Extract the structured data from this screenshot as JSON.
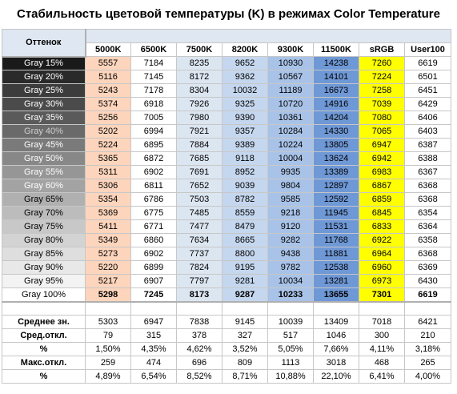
{
  "title": "Стабильность цветовой температуры (K) в режимах Color Temperature",
  "header": {
    "row_label": "Оттенок",
    "columns": [
      "5000K",
      "6500K",
      "7500K",
      "8200K",
      "9300K",
      "11500K",
      "sRGB",
      "User100"
    ]
  },
  "column_colors": [
    "#fdd5bc",
    "#ffffff",
    "#dce6f1",
    "#c5d7ee",
    "#a9c3e8",
    "#6f98d6",
    "#ffff00",
    "#ffffff"
  ],
  "rows": [
    {
      "label": "Gray 15%",
      "shade": "#1a1a1a",
      "text_color": "#ffffff",
      "values": [
        "5557",
        "7184",
        "8235",
        "9652",
        "10930",
        "14238",
        "7260",
        "6619"
      ]
    },
    {
      "label": "Gray 20%",
      "shade": "#2a2a2a",
      "text_color": "#ffffff",
      "values": [
        "5116",
        "7145",
        "8172",
        "9362",
        "10567",
        "14101",
        "7224",
        "6501"
      ]
    },
    {
      "label": "Gray 25%",
      "shade": "#3c3c3c",
      "text_color": "#ffffff",
      "values": [
        "5243",
        "7178",
        "8304",
        "10032",
        "11189",
        "16673",
        "7258",
        "6451"
      ]
    },
    {
      "label": "Gray 30%",
      "shade": "#4b4b4b",
      "text_color": "#ffffff",
      "values": [
        "5374",
        "6918",
        "7926",
        "9325",
        "10720",
        "14916",
        "7039",
        "6429"
      ]
    },
    {
      "label": "Gray 35%",
      "shade": "#5a5a5a",
      "text_color": "#ffffff",
      "values": [
        "5256",
        "7005",
        "7980",
        "9390",
        "10361",
        "14204",
        "7080",
        "6406"
      ]
    },
    {
      "label": "Gray 40%",
      "shade": "#6a6a6a",
      "text_color": "#d0d0d0",
      "values": [
        "5202",
        "6994",
        "7921",
        "9357",
        "10284",
        "14330",
        "7065",
        "6403"
      ]
    },
    {
      "label": "Gray 45%",
      "shade": "#7a7a7a",
      "text_color": "#ffffff",
      "values": [
        "5224",
        "6895",
        "7884",
        "9389",
        "10224",
        "13805",
        "6947",
        "6387"
      ]
    },
    {
      "label": "Gray 50%",
      "shade": "#888888",
      "text_color": "#ffffff",
      "values": [
        "5365",
        "6872",
        "7685",
        "9118",
        "10004",
        "13624",
        "6942",
        "6388"
      ]
    },
    {
      "label": "Gray 55%",
      "shade": "#969696",
      "text_color": "#ffffff",
      "values": [
        "5311",
        "6902",
        "7691",
        "8952",
        "9935",
        "13389",
        "6983",
        "6367"
      ]
    },
    {
      "label": "Gray 60%",
      "shade": "#a3a3a3",
      "text_color": "#ffffff",
      "values": [
        "5306",
        "6811",
        "7652",
        "9039",
        "9804",
        "12897",
        "6867",
        "6368"
      ]
    },
    {
      "label": "Gray 65%",
      "shade": "#b0b0b0",
      "text_color": "#000000",
      "values": [
        "5354",
        "6786",
        "7503",
        "8782",
        "9585",
        "12592",
        "6859",
        "6368"
      ]
    },
    {
      "label": "Gray 70%",
      "shade": "#bcbcbc",
      "text_color": "#000000",
      "values": [
        "5369",
        "6775",
        "7485",
        "8559",
        "9218",
        "11945",
        "6845",
        "6354"
      ]
    },
    {
      "label": "Gray 75%",
      "shade": "#c8c8c8",
      "text_color": "#000000",
      "values": [
        "5411",
        "6771",
        "7477",
        "8479",
        "9120",
        "11531",
        "6833",
        "6364"
      ]
    },
    {
      "label": "Gray 80%",
      "shade": "#d3d3d3",
      "text_color": "#000000",
      "values": [
        "5349",
        "6860",
        "7634",
        "8665",
        "9282",
        "11768",
        "6922",
        "6358"
      ]
    },
    {
      "label": "Gray 85%",
      "shade": "#dedede",
      "text_color": "#000000",
      "values": [
        "5273",
        "6902",
        "7737",
        "8800",
        "9438",
        "11881",
        "6964",
        "6368"
      ]
    },
    {
      "label": "Gray 90%",
      "shade": "#e8e8e8",
      "text_color": "#000000",
      "values": [
        "5220",
        "6899",
        "7824",
        "9195",
        "9782",
        "12538",
        "6960",
        "6369"
      ]
    },
    {
      "label": "Gray 95%",
      "shade": "#f3f3f3",
      "text_color": "#000000",
      "values": [
        "5217",
        "6907",
        "7797",
        "9281",
        "10034",
        "13281",
        "6973",
        "6430"
      ]
    },
    {
      "label": "Gray 100%",
      "shade": "#ffffff",
      "text_color": "#000000",
      "values": [
        "5298",
        "7245",
        "8173",
        "9287",
        "10233",
        "13655",
        "7301",
        "6619"
      ]
    }
  ],
  "summary": [
    {
      "label": "Среднее зн.",
      "values": [
        "5303",
        "6947",
        "7838",
        "9145",
        "10039",
        "13409",
        "7018",
        "6421"
      ]
    },
    {
      "label": "Сред.откл.",
      "values": [
        "79",
        "315",
        "378",
        "327",
        "517",
        "1046",
        "300",
        "210"
      ]
    },
    {
      "label": "%",
      "values": [
        "1,50%",
        "4,35%",
        "4,62%",
        "3,52%",
        "5,05%",
        "7,66%",
        "4,11%",
        "3,18%"
      ]
    },
    {
      "label": "Макс.откл.",
      "values": [
        "259",
        "474",
        "696",
        "809",
        "1113",
        "3018",
        "468",
        "265"
      ]
    },
    {
      "label": "%",
      "values": [
        "4,89%",
        "6,54%",
        "8,52%",
        "8,71%",
        "10,88%",
        "22,10%",
        "6,41%",
        "4,00%"
      ]
    }
  ],
  "chart_data": {
    "type": "table",
    "title": "Стабильность цветовой температуры (K) в режимах Color Temperature",
    "row_header": "Оттенок",
    "columns": [
      "5000K",
      "6500K",
      "7500K",
      "8200K",
      "9300K",
      "11500K",
      "sRGB",
      "User100"
    ],
    "row_labels": [
      "Gray 15%",
      "Gray 20%",
      "Gray 25%",
      "Gray 30%",
      "Gray 35%",
      "Gray 40%",
      "Gray 45%",
      "Gray 50%",
      "Gray 55%",
      "Gray 60%",
      "Gray 65%",
      "Gray 70%",
      "Gray 75%",
      "Gray 80%",
      "Gray 85%",
      "Gray 90%",
      "Gray 95%",
      "Gray 100%"
    ],
    "values": [
      [
        5557,
        7184,
        8235,
        9652,
        10930,
        14238,
        7260,
        6619
      ],
      [
        5116,
        7145,
        8172,
        9362,
        10567,
        14101,
        7224,
        6501
      ],
      [
        5243,
        7178,
        8304,
        10032,
        11189,
        16673,
        7258,
        6451
      ],
      [
        5374,
        6918,
        7926,
        9325,
        10720,
        14916,
        7039,
        6429
      ],
      [
        5256,
        7005,
        7980,
        9390,
        10361,
        14204,
        7080,
        6406
      ],
      [
        5202,
        6994,
        7921,
        9357,
        10284,
        14330,
        7065,
        6403
      ],
      [
        5224,
        6895,
        7884,
        9389,
        10224,
        13805,
        6947,
        6387
      ],
      [
        5365,
        6872,
        7685,
        9118,
        10004,
        13624,
        6942,
        6388
      ],
      [
        5311,
        6902,
        7691,
        8952,
        9935,
        13389,
        6983,
        6367
      ],
      [
        5306,
        6811,
        7652,
        9039,
        9804,
        12897,
        6867,
        6368
      ],
      [
        5354,
        6786,
        7503,
        8782,
        9585,
        12592,
        6859,
        6368
      ],
      [
        5369,
        6775,
        7485,
        8559,
        9218,
        11945,
        6845,
        6354
      ],
      [
        5411,
        6771,
        7477,
        8479,
        9120,
        11531,
        6833,
        6364
      ],
      [
        5349,
        6860,
        7634,
        8665,
        9282,
        11768,
        6922,
        6358
      ],
      [
        5273,
        6902,
        7737,
        8800,
        9438,
        11881,
        6964,
        6368
      ],
      [
        5220,
        6899,
        7824,
        9195,
        9782,
        12538,
        6960,
        6369
      ],
      [
        5217,
        6907,
        7797,
        9281,
        10034,
        13281,
        6973,
        6430
      ],
      [
        5298,
        7245,
        8173,
        9287,
        10233,
        13655,
        7301,
        6619
      ]
    ],
    "summary": {
      "Среднее зн.": [
        5303,
        6947,
        7838,
        9145,
        10039,
        13409,
        7018,
        6421
      ],
      "Сред.откл.": [
        79,
        315,
        378,
        327,
        517,
        1046,
        300,
        210
      ],
      "Сред.откл. %": [
        "1,50%",
        "4,35%",
        "4,62%",
        "3,52%",
        "5,05%",
        "7,66%",
        "4,11%",
        "3,18%"
      ],
      "Макс.откл.": [
        259,
        474,
        696,
        809,
        1113,
        3018,
        468,
        265
      ],
      "Макс.откл. %": [
        "4,89%",
        "6,54%",
        "8,52%",
        "8,71%",
        "10,88%",
        "22,10%",
        "6,41%",
        "4,00%"
      ]
    }
  }
}
